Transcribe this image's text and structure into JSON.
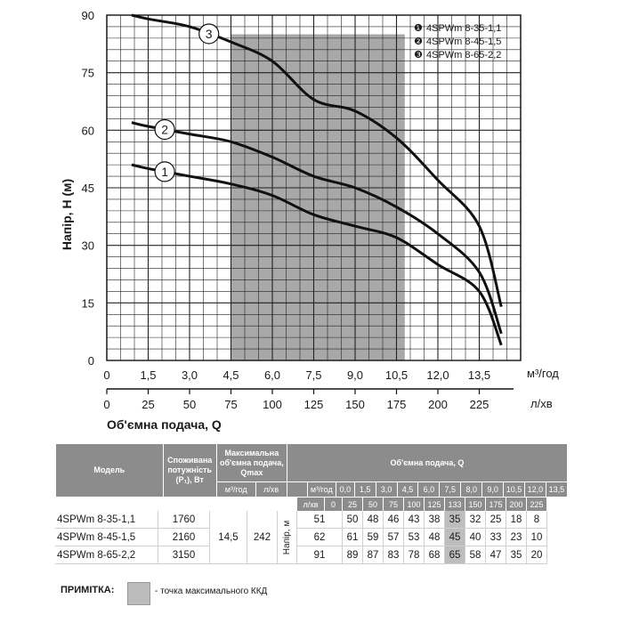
{
  "chart_data": {
    "type": "line",
    "xlabel": "Об'ємна подача, Q",
    "ylabel": "Напір, Н (м)",
    "x_unit_m3": "м³/год",
    "x_unit_l": "л/хв",
    "xlim": [
      0,
      15.0
    ],
    "ylim": [
      0,
      90
    ],
    "x_ticks_m3": [
      "0",
      "1,5",
      "3,0",
      "4,5",
      "6,0",
      "7,5",
      "9,0",
      "10,5",
      "12,0",
      "13,5"
    ],
    "x_ticks_m3_values": [
      0,
      1.5,
      3.0,
      4.5,
      6.0,
      7.5,
      9.0,
      10.5,
      12.0,
      13.5
    ],
    "x_ticks_l": [
      "0",
      "25",
      "50",
      "75",
      "100",
      "125",
      "150",
      "175",
      "200",
      "225"
    ],
    "x_ticks_l_values": [
      0,
      25,
      50,
      75,
      100,
      125,
      150,
      175,
      200,
      225
    ],
    "y_ticks": [
      "0",
      "15",
      "30",
      "45",
      "60",
      "75",
      "90"
    ],
    "y_ticks_values": [
      0,
      15,
      30,
      45,
      60,
      75,
      90
    ],
    "grid": true,
    "shaded_region_x": [
      4.5,
      10.8
    ],
    "x": [
      0.9,
      1.5,
      3.0,
      4.5,
      6.0,
      7.5,
      9.0,
      10.5,
      12.0,
      13.5,
      14.3
    ],
    "series": [
      {
        "name": "4SPWm 8-35-1,1",
        "marker": "1",
        "values": [
          51,
          50,
          48,
          46,
          43,
          38,
          35,
          32,
          25,
          18,
          4
        ]
      },
      {
        "name": "4SPWm 8-45-1,5",
        "marker": "2",
        "values": [
          62,
          61,
          59,
          57,
          53,
          48,
          45,
          40,
          33,
          23,
          7
        ]
      },
      {
        "name": "4SPWm 8-65-2,2",
        "marker": "3",
        "values": [
          90,
          89,
          87,
          83,
          78,
          68,
          65,
          58,
          47,
          35,
          14
        ]
      }
    ],
    "legend": [
      {
        "bullet": "❶",
        "label": "4SPWm 8-35-1,1"
      },
      {
        "bullet": "❷",
        "label": "4SPWm 8-45-1,5"
      },
      {
        "bullet": "❸",
        "label": "4SPWm 8-65-2,2"
      }
    ],
    "legend_position": "top-right"
  },
  "table": {
    "h_model": "Модель",
    "h_power": "Споживана потужність (Р₁), Вт",
    "h_qmax": "Максимальна об'ємна подача, Qmax",
    "h_flow": "Об'ємна подача, Q",
    "h_qmax_m3": "м³/год",
    "h_qmax_l": "л/хв",
    "h_m3": "м³/год",
    "h_l": "л/хв",
    "h_head": "Напір, м",
    "flow_m3": [
      "0,0",
      "1,5",
      "3,0",
      "4,5",
      "6,0",
      "7,5",
      "8,0",
      "9,0",
      "10,5",
      "12,0",
      "13,5"
    ],
    "flow_l": [
      "0",
      "25",
      "50",
      "75",
      "100",
      "125",
      "133",
      "150",
      "175",
      "200",
      "225"
    ],
    "qmax_m3": "14,5",
    "qmax_l": "242",
    "rows": [
      {
        "model": "4SPWm 8-35-1,1",
        "power": "1760",
        "heads": [
          "51",
          "50",
          "48",
          "46",
          "43",
          "38",
          "35",
          "32",
          "25",
          "18",
          "8"
        ]
      },
      {
        "model": "4SPWm 8-45-1,5",
        "power": "2160",
        "heads": [
          "62",
          "61",
          "59",
          "57",
          "53",
          "48",
          "45",
          "40",
          "33",
          "23",
          "10"
        ]
      },
      {
        "model": "4SPWm 8-65-2,2",
        "power": "3150",
        "heads": [
          "91",
          "89",
          "87",
          "83",
          "78",
          "68",
          "65",
          "58",
          "47",
          "35",
          "20"
        ]
      }
    ]
  },
  "note": {
    "label": "ПРИМІТКА:",
    "text": "- точка максимального ККД"
  },
  "colors": {
    "shade": "#a8a8a8",
    "grid": "#222222",
    "curve": "#111111",
    "header_bg": "#8c8c8c",
    "highlight": "#bdbdbd"
  }
}
